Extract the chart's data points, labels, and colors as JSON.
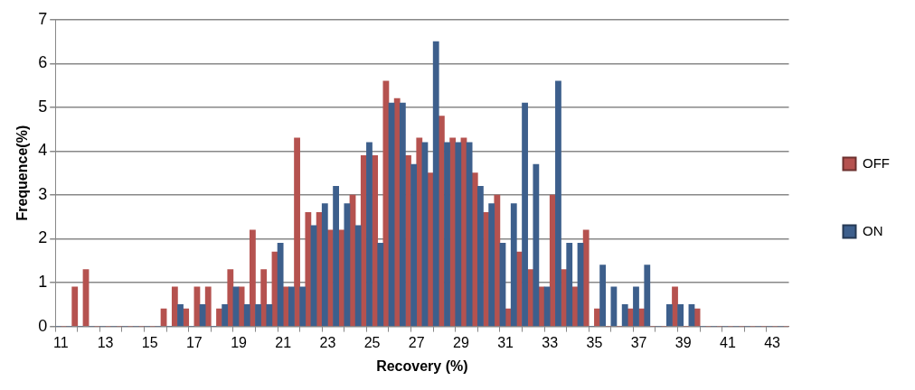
{
  "chart_data": {
    "type": "bar",
    "xlabel": "Recovery (%)",
    "ylabel": "Frequence(%)",
    "categories": [
      "11",
      null,
      null,
      null,
      "13",
      null,
      null,
      null,
      "15",
      null,
      null,
      null,
      "17",
      null,
      null,
      null,
      "19",
      null,
      null,
      null,
      "21",
      null,
      null,
      null,
      "23",
      null,
      null,
      null,
      "25",
      null,
      null,
      null,
      "27",
      null,
      null,
      null,
      "29",
      null,
      null,
      null,
      "31",
      null,
      null,
      null,
      "33",
      null,
      null,
      null,
      "35",
      null,
      null,
      null,
      "37",
      null,
      null,
      null,
      "39",
      null,
      null,
      null,
      "41",
      null,
      null,
      null,
      "43",
      null
    ],
    "series": [
      {
        "name": "OFF",
        "color": "#b5524f",
        "values": [
          0,
          0.9,
          1.3,
          0,
          0,
          0,
          0,
          0,
          0,
          0.4,
          0.9,
          0.4,
          0.9,
          0.9,
          0.4,
          1.3,
          0.9,
          2.2,
          1.3,
          1.7,
          0.9,
          4.3,
          2.6,
          2.6,
          2.2,
          2.2,
          3.0,
          3.9,
          3.9,
          5.6,
          5.2,
          3.9,
          4.3,
          3.5,
          4.8,
          4.3,
          4.3,
          3.5,
          2.6,
          3.0,
          0.4,
          1.7,
          1.3,
          0.9,
          3.0,
          1.3,
          0.9,
          2.2,
          0.4,
          0,
          0,
          0.4,
          0.4,
          0,
          0,
          0.9,
          0,
          0.4,
          0,
          0,
          0,
          0,
          0,
          0,
          0,
          0
        ]
      },
      {
        "name": "ON",
        "color": "#3d5f8c",
        "values": [
          0,
          0,
          0,
          0,
          0,
          0,
          0,
          0,
          0,
          0,
          0,
          0.5,
          0,
          0.5,
          0,
          0.5,
          0.9,
          0.5,
          0.5,
          0.5,
          1.9,
          0.9,
          0.9,
          2.3,
          2.8,
          3.2,
          2.8,
          2.3,
          4.2,
          1.9,
          5.1,
          5.1,
          3.7,
          4.2,
          6.5,
          4.2,
          4.2,
          4.2,
          3.2,
          2.8,
          1.9,
          2.8,
          5.1,
          3.7,
          0.9,
          5.6,
          1.9,
          1.9,
          0,
          1.4,
          0.9,
          0.5,
          0.9,
          1.4,
          0,
          0.5,
          0.5,
          0.5,
          0,
          0,
          0,
          0,
          0,
          0,
          0,
          0
        ]
      }
    ],
    "ylim": [
      0,
      7
    ],
    "yticks": [
      0,
      1,
      2,
      3,
      4,
      5,
      6,
      7
    ],
    "grid": "y",
    "legend": "right"
  }
}
